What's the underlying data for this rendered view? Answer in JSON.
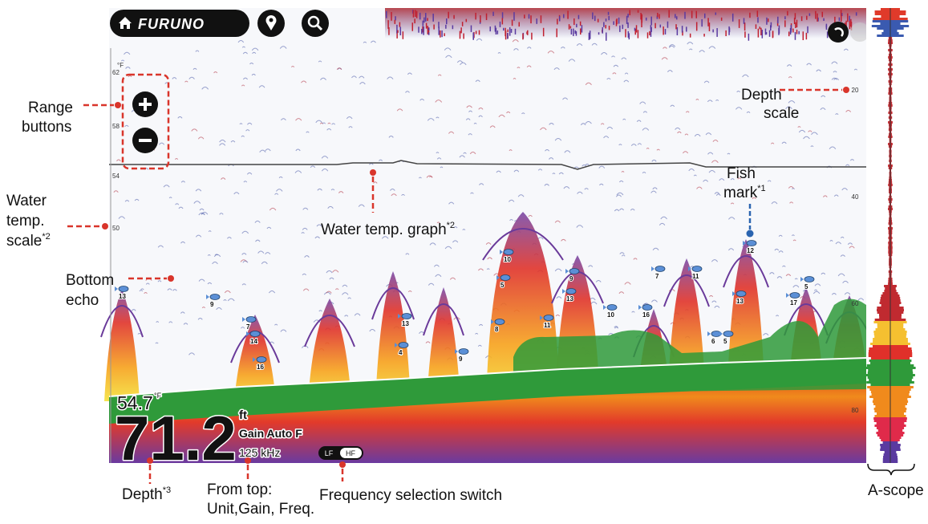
{
  "toolbar": {
    "brand": "FURUNO"
  },
  "depth_scale": {
    "labels": [
      "20",
      "40",
      "60",
      "80"
    ]
  },
  "temp_scale": {
    "unit": "°F",
    "labels": [
      "62",
      "58",
      "54",
      "50"
    ]
  },
  "fish_marks": [
    "13",
    "9",
    "7",
    "14",
    "16",
    "13",
    "4",
    "9",
    "10",
    "5",
    "8",
    "11",
    "13",
    "9",
    "10",
    "16",
    "7",
    "11",
    "6",
    "5",
    "13",
    "12",
    "5",
    "17"
  ],
  "readout": {
    "temp": "54.7",
    "temp_unit": "°F",
    "depth": "71.2",
    "unit": "ft",
    "gain": "Gain Auto F",
    "freq": "125 kHz"
  },
  "freq_switch": {
    "low": "LF",
    "high": "HF"
  },
  "callouts": {
    "range": [
      "Range",
      "buttons"
    ],
    "depth_scale": [
      "Depth",
      "scale"
    ],
    "temp_scale": {
      "lines": [
        "Water",
        "temp.",
        "scale"
      ],
      "note": "*2"
    },
    "bottom_echo": [
      "Bottom",
      "echo"
    ],
    "temp_graph": {
      "text": "Water temp. graph",
      "note": "*2"
    },
    "fish_mark": {
      "lines": [
        "Fish",
        "mark"
      ],
      "note": "*1"
    },
    "depth": {
      "text": "Depth",
      "note": "*3"
    },
    "unit_gain_freq": [
      "From top:",
      "Unit,Gain, Freq."
    ],
    "freq_switch": "Frequency selection switch",
    "a_scope": "A-scope"
  }
}
